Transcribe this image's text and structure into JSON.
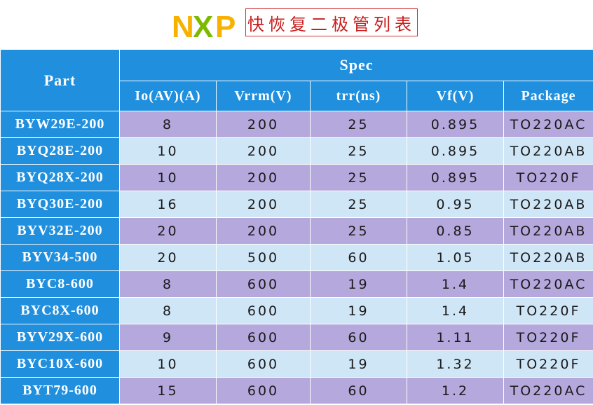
{
  "logo": {
    "icon": "nxp-logo",
    "letters": [
      "N",
      "X",
      "P"
    ],
    "colors": [
      "#f7b200",
      "#7cba00",
      "#f7b200"
    ]
  },
  "title": "快恢复二极管列表",
  "table": {
    "part_header": "Part",
    "spec_header": "Spec",
    "columns": [
      "Io(AV)(A)",
      "Vrrm(V)",
      "trr(ns)",
      "Vf(V)",
      "Package"
    ],
    "rows": [
      {
        "part": "BYW29E-200",
        "io": "8",
        "vrrm": "200",
        "trr": "25",
        "vf": "0.895",
        "package": "TO220AC"
      },
      {
        "part": "BYQ28E-200",
        "io": "10",
        "vrrm": "200",
        "trr": "25",
        "vf": "0.895",
        "package": "TO220AB"
      },
      {
        "part": "BYQ28X-200",
        "io": "10",
        "vrrm": "200",
        "trr": "25",
        "vf": "0.895",
        "package": "TO220F"
      },
      {
        "part": "BYQ30E-200",
        "io": "16",
        "vrrm": "200",
        "trr": "25",
        "vf": "0.95",
        "package": "TO220AB"
      },
      {
        "part": "BYV32E-200",
        "io": "20",
        "vrrm": "200",
        "trr": "25",
        "vf": "0.85",
        "package": "TO220AB"
      },
      {
        "part": "BYV34-500",
        "io": "20",
        "vrrm": "500",
        "trr": "60",
        "vf": "1.05",
        "package": "TO220AB"
      },
      {
        "part": "BYC8-600",
        "io": "8",
        "vrrm": "600",
        "trr": "19",
        "vf": "1.4",
        "package": "TO220AC"
      },
      {
        "part": "BYC8X-600",
        "io": "8",
        "vrrm": "600",
        "trr": "19",
        "vf": "1.4",
        "package": "TO220F"
      },
      {
        "part": "BYV29X-600",
        "io": "9",
        "vrrm": "600",
        "trr": "60",
        "vf": "1.11",
        "package": "TO220F"
      },
      {
        "part": "BYC10X-600",
        "io": "10",
        "vrrm": "600",
        "trr": "19",
        "vf": "1.32",
        "package": "TO220F"
      },
      {
        "part": "BYT79-600",
        "io": "15",
        "vrrm": "600",
        "trr": "60",
        "vf": "1.2",
        "package": "TO220AC"
      }
    ]
  },
  "colors": {
    "header_blue": "#1f8fde",
    "row_purple": "#b4a8dd",
    "row_light_blue": "#cfe6f7",
    "title_red": "#c81e1e"
  }
}
